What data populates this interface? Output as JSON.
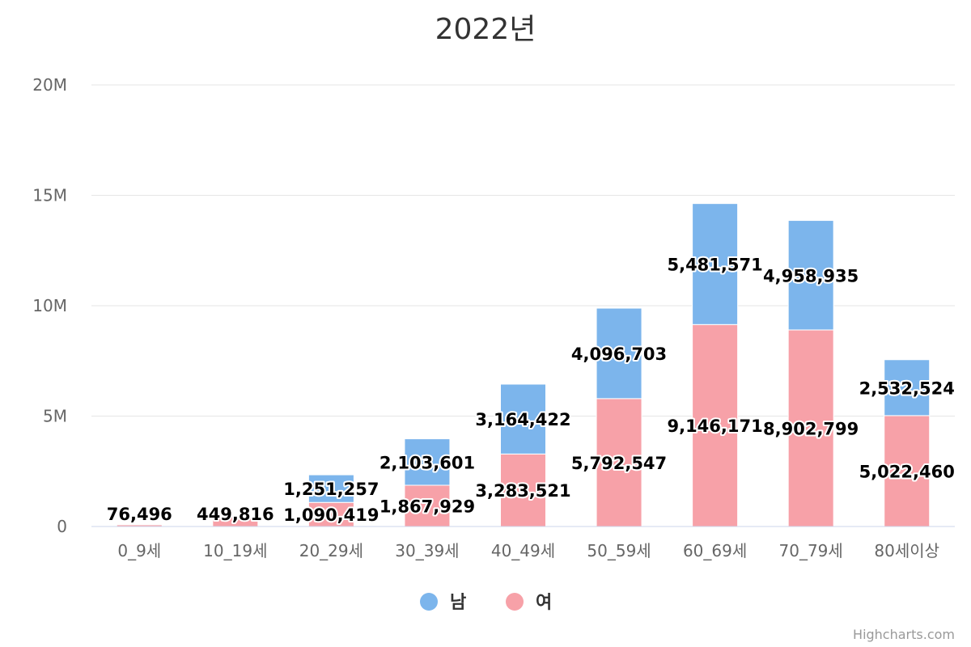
{
  "chart_data": {
    "type": "bar",
    "stacked": true,
    "title": "2022년",
    "xlabel": "",
    "ylabel": "",
    "categories": [
      "0_9세",
      "10_19세",
      "20_29세",
      "30_39세",
      "40_49세",
      "50_59세",
      "60_69세",
      "70_79세",
      "80세이상"
    ],
    "series": [
      {
        "name": "남",
        "color": "#7cb5ec",
        "values": [
          0,
          0,
          1251257,
          2103601,
          3164422,
          4096703,
          5481571,
          4958935,
          2532524
        ]
      },
      {
        "name": "여",
        "color": "#f7a1a8",
        "values": [
          76496,
          449816,
          1090419,
          1867929,
          3283521,
          5792547,
          9146171,
          8902799,
          5022460
        ]
      }
    ],
    "data_labels": {
      "남": [
        "",
        "",
        "1,251,257",
        "2,103,601",
        "3,164,422",
        "4,096,703",
        "5,481,571",
        "4,958,935",
        "2,532,524"
      ],
      "여": [
        "76,496",
        "449,816",
        "1,090,419",
        "1,867,929",
        "3,283,521",
        "5,792,547",
        "9,146,171",
        "8,902,799",
        "5,022,460"
      ]
    },
    "ylim": [
      0,
      20000000
    ],
    "yticks": [
      0,
      5000000,
      10000000,
      15000000,
      20000000
    ],
    "ytick_labels": [
      "0",
      "5M",
      "10M",
      "15M",
      "20M"
    ],
    "grid": true,
    "legend_position": "bottom-center",
    "credit": "Highcharts.com"
  }
}
